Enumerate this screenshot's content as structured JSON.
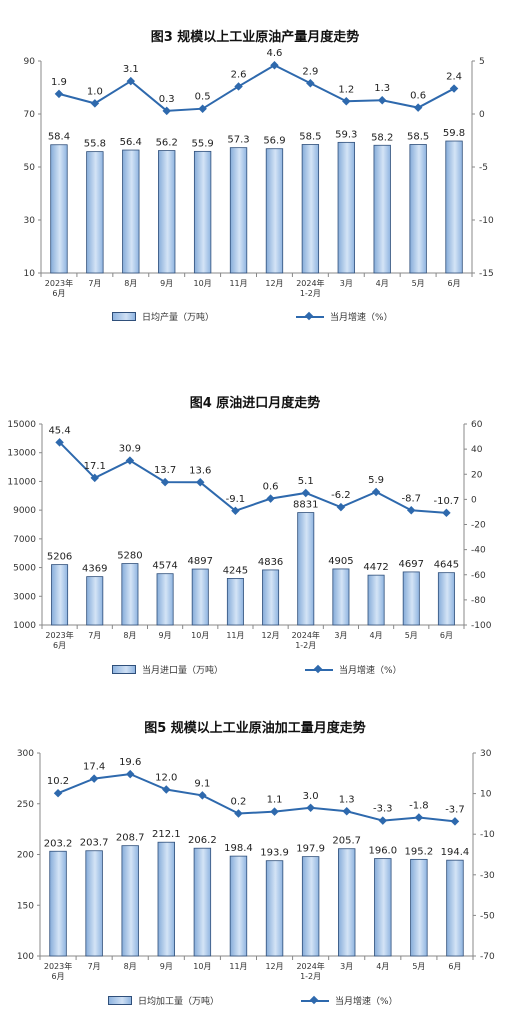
{
  "chart_data": [
    {
      "type": "bar",
      "title": "图3  规模以上工业原油产量月度走势",
      "categories": [
        [
          "2023年",
          "6月"
        ],
        [
          "7月"
        ],
        [
          "8月"
        ],
        [
          "9月"
        ],
        [
          "10月"
        ],
        [
          "11月"
        ],
        [
          "12月"
        ],
        [
          "2024年",
          "1-2月"
        ],
        [
          "3月"
        ],
        [
          "4月"
        ],
        [
          "5月"
        ],
        [
          "6月"
        ]
      ],
      "series": [
        {
          "name": "日均产量（万吨）",
          "type": "bar",
          "axis": "left",
          "values": [
            58.4,
            55.8,
            56.4,
            56.2,
            55.9,
            57.3,
            56.9,
            58.5,
            59.3,
            58.2,
            58.5,
            59.8
          ],
          "labels": [
            "58.4",
            "55.8",
            "56.4",
            "56.2",
            "55.9",
            "57.3",
            "56.9",
            "58.5",
            "59.3",
            "58.2",
            "58.5",
            "59.8"
          ]
        },
        {
          "name": "当月增速（%）",
          "type": "line",
          "axis": "right",
          "values": [
            1.9,
            1.0,
            3.1,
            0.3,
            0.5,
            2.6,
            4.6,
            2.9,
            1.2,
            1.3,
            0.6,
            2.4
          ],
          "labels": [
            "1.9",
            "1.0",
            "3.1",
            "0.3",
            "0.5",
            "2.6",
            "4.6",
            "2.9",
            "1.2",
            "1.3",
            "0.6",
            "2.4"
          ]
        }
      ],
      "left_axis": {
        "min": 10,
        "max": 90,
        "ticks": [
          10,
          30,
          50,
          70,
          90
        ]
      },
      "right_axis": {
        "min": -15,
        "max": 5,
        "ticks": [
          -15,
          -10,
          -5,
          0,
          5
        ]
      },
      "grid": false,
      "legend": "bottom"
    },
    {
      "type": "bar",
      "title": "图4  原油进口月度走势",
      "categories": [
        [
          "2023年",
          "6月"
        ],
        [
          "7月"
        ],
        [
          "8月"
        ],
        [
          "9月"
        ],
        [
          "10月"
        ],
        [
          "11月"
        ],
        [
          "12月"
        ],
        [
          "2024年",
          "1-2月"
        ],
        [
          "3月"
        ],
        [
          "4月"
        ],
        [
          "5月"
        ],
        [
          "6月"
        ]
      ],
      "series": [
        {
          "name": "当月进口量（万吨）",
          "type": "bar",
          "axis": "left",
          "values": [
            5206,
            4369,
            5280,
            4574,
            4897,
            4245,
            4836,
            8831,
            4905,
            4472,
            4697,
            4645
          ],
          "labels": [
            "5206",
            "4369",
            "5280",
            "4574",
            "4897",
            "4245",
            "4836",
            "8831",
            "4905",
            "4472",
            "4697",
            "4645"
          ]
        },
        {
          "name": "当月增速（%）",
          "type": "line",
          "axis": "right",
          "values": [
            45.4,
            17.1,
            30.9,
            13.7,
            13.6,
            -9.1,
            0.6,
            5.1,
            -6.2,
            5.9,
            -8.7,
            -10.7
          ],
          "labels": [
            "45.4",
            "17.1",
            "30.9",
            "13.7",
            "13.6",
            "-9.1",
            "0.6",
            "5.1",
            "-6.2",
            "5.9",
            "-8.7",
            "-10.7"
          ]
        }
      ],
      "left_axis": {
        "min": 1000,
        "max": 15000,
        "ticks": [
          1000,
          3000,
          5000,
          7000,
          9000,
          11000,
          13000,
          15000
        ]
      },
      "right_axis": {
        "min": -100,
        "max": 60,
        "ticks": [
          -100,
          -80,
          -60,
          -40,
          -20,
          0,
          20,
          40,
          60
        ]
      },
      "grid": false,
      "legend": "bottom"
    },
    {
      "type": "bar",
      "title": "图5  规模以上工业原油加工量月度走势",
      "categories": [
        [
          "2023年",
          "6月"
        ],
        [
          "7月"
        ],
        [
          "8月"
        ],
        [
          "9月"
        ],
        [
          "10月"
        ],
        [
          "11月"
        ],
        [
          "12月"
        ],
        [
          "2024年",
          "1-2月"
        ],
        [
          "3月"
        ],
        [
          "4月"
        ],
        [
          "5月"
        ],
        [
          "6月"
        ]
      ],
      "series": [
        {
          "name": "日均加工量（万吨）",
          "type": "bar",
          "axis": "left",
          "values": [
            203.2,
            203.7,
            208.7,
            212.1,
            206.2,
            198.4,
            193.9,
            197.9,
            205.7,
            196.0,
            195.2,
            194.4
          ],
          "labels": [
            "203.2",
            "203.7",
            "208.7",
            "212.1",
            "206.2",
            "198.4",
            "193.9",
            "197.9",
            "205.7",
            "196.0",
            "195.2",
            "194.4"
          ]
        },
        {
          "name": "当月增速（%）",
          "type": "line",
          "axis": "right",
          "values": [
            10.2,
            17.4,
            19.6,
            12.0,
            9.1,
            0.2,
            1.1,
            3.0,
            1.3,
            -3.3,
            -1.8,
            -3.7
          ],
          "labels": [
            "10.2",
            "17.4",
            "19.6",
            "12.0",
            "9.1",
            "0.2",
            "1.1",
            "3.0",
            "1.3",
            "-3.3",
            "-1.8",
            "-3.7"
          ]
        }
      ],
      "left_axis": {
        "min": 100,
        "max": 300,
        "ticks": [
          100,
          150,
          200,
          250,
          300
        ]
      },
      "right_axis": {
        "min": -70,
        "max": 30,
        "ticks": [
          -70,
          -50,
          -30,
          -10,
          10,
          30
        ]
      },
      "grid": false,
      "legend": "bottom"
    }
  ],
  "colors": {
    "bar_fill": "#a9c8ec",
    "bar_edge": "#2f4f7a",
    "line": "#2e69ad",
    "axis": "#888888"
  }
}
